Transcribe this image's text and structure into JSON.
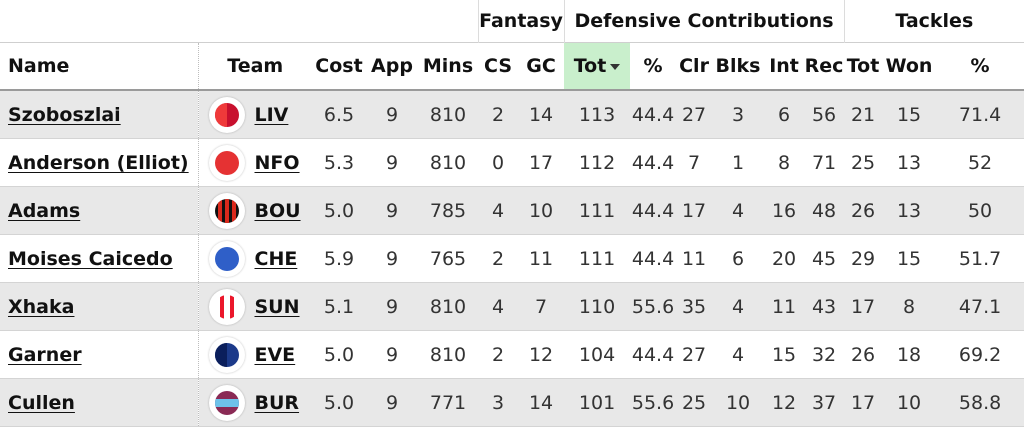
{
  "groups": {
    "fantasy": "Fantasy",
    "defcon": "Defensive Contributions",
    "tackles": "Tackles"
  },
  "columns": {
    "name": "Name",
    "team": "Team",
    "cost": "Cost",
    "app": "App",
    "mins": "Mins",
    "cs": "CS",
    "gc": "GC",
    "tot": "Tot",
    "pct": "%",
    "clr": "Clr",
    "blks": "Blks",
    "int": "Int",
    "rec": "Rec",
    "tk_tot": "Tot",
    "tk_won": "Won",
    "tk_pct": "%"
  },
  "sort": {
    "column": "defcon_tot",
    "direction": "desc",
    "icon": "caret-down-icon"
  },
  "rows": [
    {
      "name": "Szoboszlai",
      "team": "LIV",
      "badge": "liv",
      "cost": "6.5",
      "app": "9",
      "mins": "810",
      "cs": "2",
      "gc": "14",
      "tot": "113",
      "pct": "44.4",
      "clr": "27",
      "blks": "3",
      "int": "6",
      "rec": "56",
      "tk_tot": "21",
      "tk_won": "15",
      "tk_pct": "71.4"
    },
    {
      "name": "Anderson (Elliot)",
      "team": "NFO",
      "badge": "nfo",
      "cost": "5.3",
      "app": "9",
      "mins": "810",
      "cs": "0",
      "gc": "17",
      "tot": "112",
      "pct": "44.4",
      "clr": "7",
      "blks": "1",
      "int": "8",
      "rec": "71",
      "tk_tot": "25",
      "tk_won": "13",
      "tk_pct": "52"
    },
    {
      "name": "Adams",
      "team": "BOU",
      "badge": "bou",
      "cost": "5.0",
      "app": "9",
      "mins": "785",
      "cs": "4",
      "gc": "10",
      "tot": "111",
      "pct": "44.4",
      "clr": "17",
      "blks": "4",
      "int": "16",
      "rec": "48",
      "tk_tot": "26",
      "tk_won": "13",
      "tk_pct": "50"
    },
    {
      "name": "Moises Caicedo",
      "team": "CHE",
      "badge": "che",
      "cost": "5.9",
      "app": "9",
      "mins": "765",
      "cs": "2",
      "gc": "11",
      "tot": "111",
      "pct": "44.4",
      "clr": "11",
      "blks": "6",
      "int": "20",
      "rec": "45",
      "tk_tot": "29",
      "tk_won": "15",
      "tk_pct": "51.7"
    },
    {
      "name": "Xhaka",
      "team": "SUN",
      "badge": "sun",
      "cost": "5.1",
      "app": "9",
      "mins": "810",
      "cs": "4",
      "gc": "7",
      "tot": "110",
      "pct": "55.6",
      "clr": "35",
      "blks": "4",
      "int": "11",
      "rec": "43",
      "tk_tot": "17",
      "tk_won": "8",
      "tk_pct": "47.1"
    },
    {
      "name": "Garner",
      "team": "EVE",
      "badge": "eve",
      "cost": "5.0",
      "app": "9",
      "mins": "810",
      "cs": "2",
      "gc": "12",
      "tot": "104",
      "pct": "44.4",
      "clr": "27",
      "blks": "4",
      "int": "15",
      "rec": "32",
      "tk_tot": "26",
      "tk_won": "18",
      "tk_pct": "69.2"
    },
    {
      "name": "Cullen",
      "team": "BUR",
      "badge": "bur",
      "cost": "5.0",
      "app": "9",
      "mins": "771",
      "cs": "3",
      "gc": "14",
      "tot": "101",
      "pct": "55.6",
      "clr": "25",
      "blks": "10",
      "int": "12",
      "rec": "37",
      "tk_tot": "17",
      "tk_won": "10",
      "tk_pct": "58.8"
    }
  ],
  "colors": {
    "sorted_header": "#c9efcc",
    "row_odd": "#e8e8e8",
    "row_even": "#ffffff",
    "liv": "#c8102e",
    "nfo": "#e53233",
    "bou": "#da291c",
    "che": "#034694",
    "sun": "#eb172b",
    "eve": "#003399",
    "bur": "#6c1d45"
  }
}
